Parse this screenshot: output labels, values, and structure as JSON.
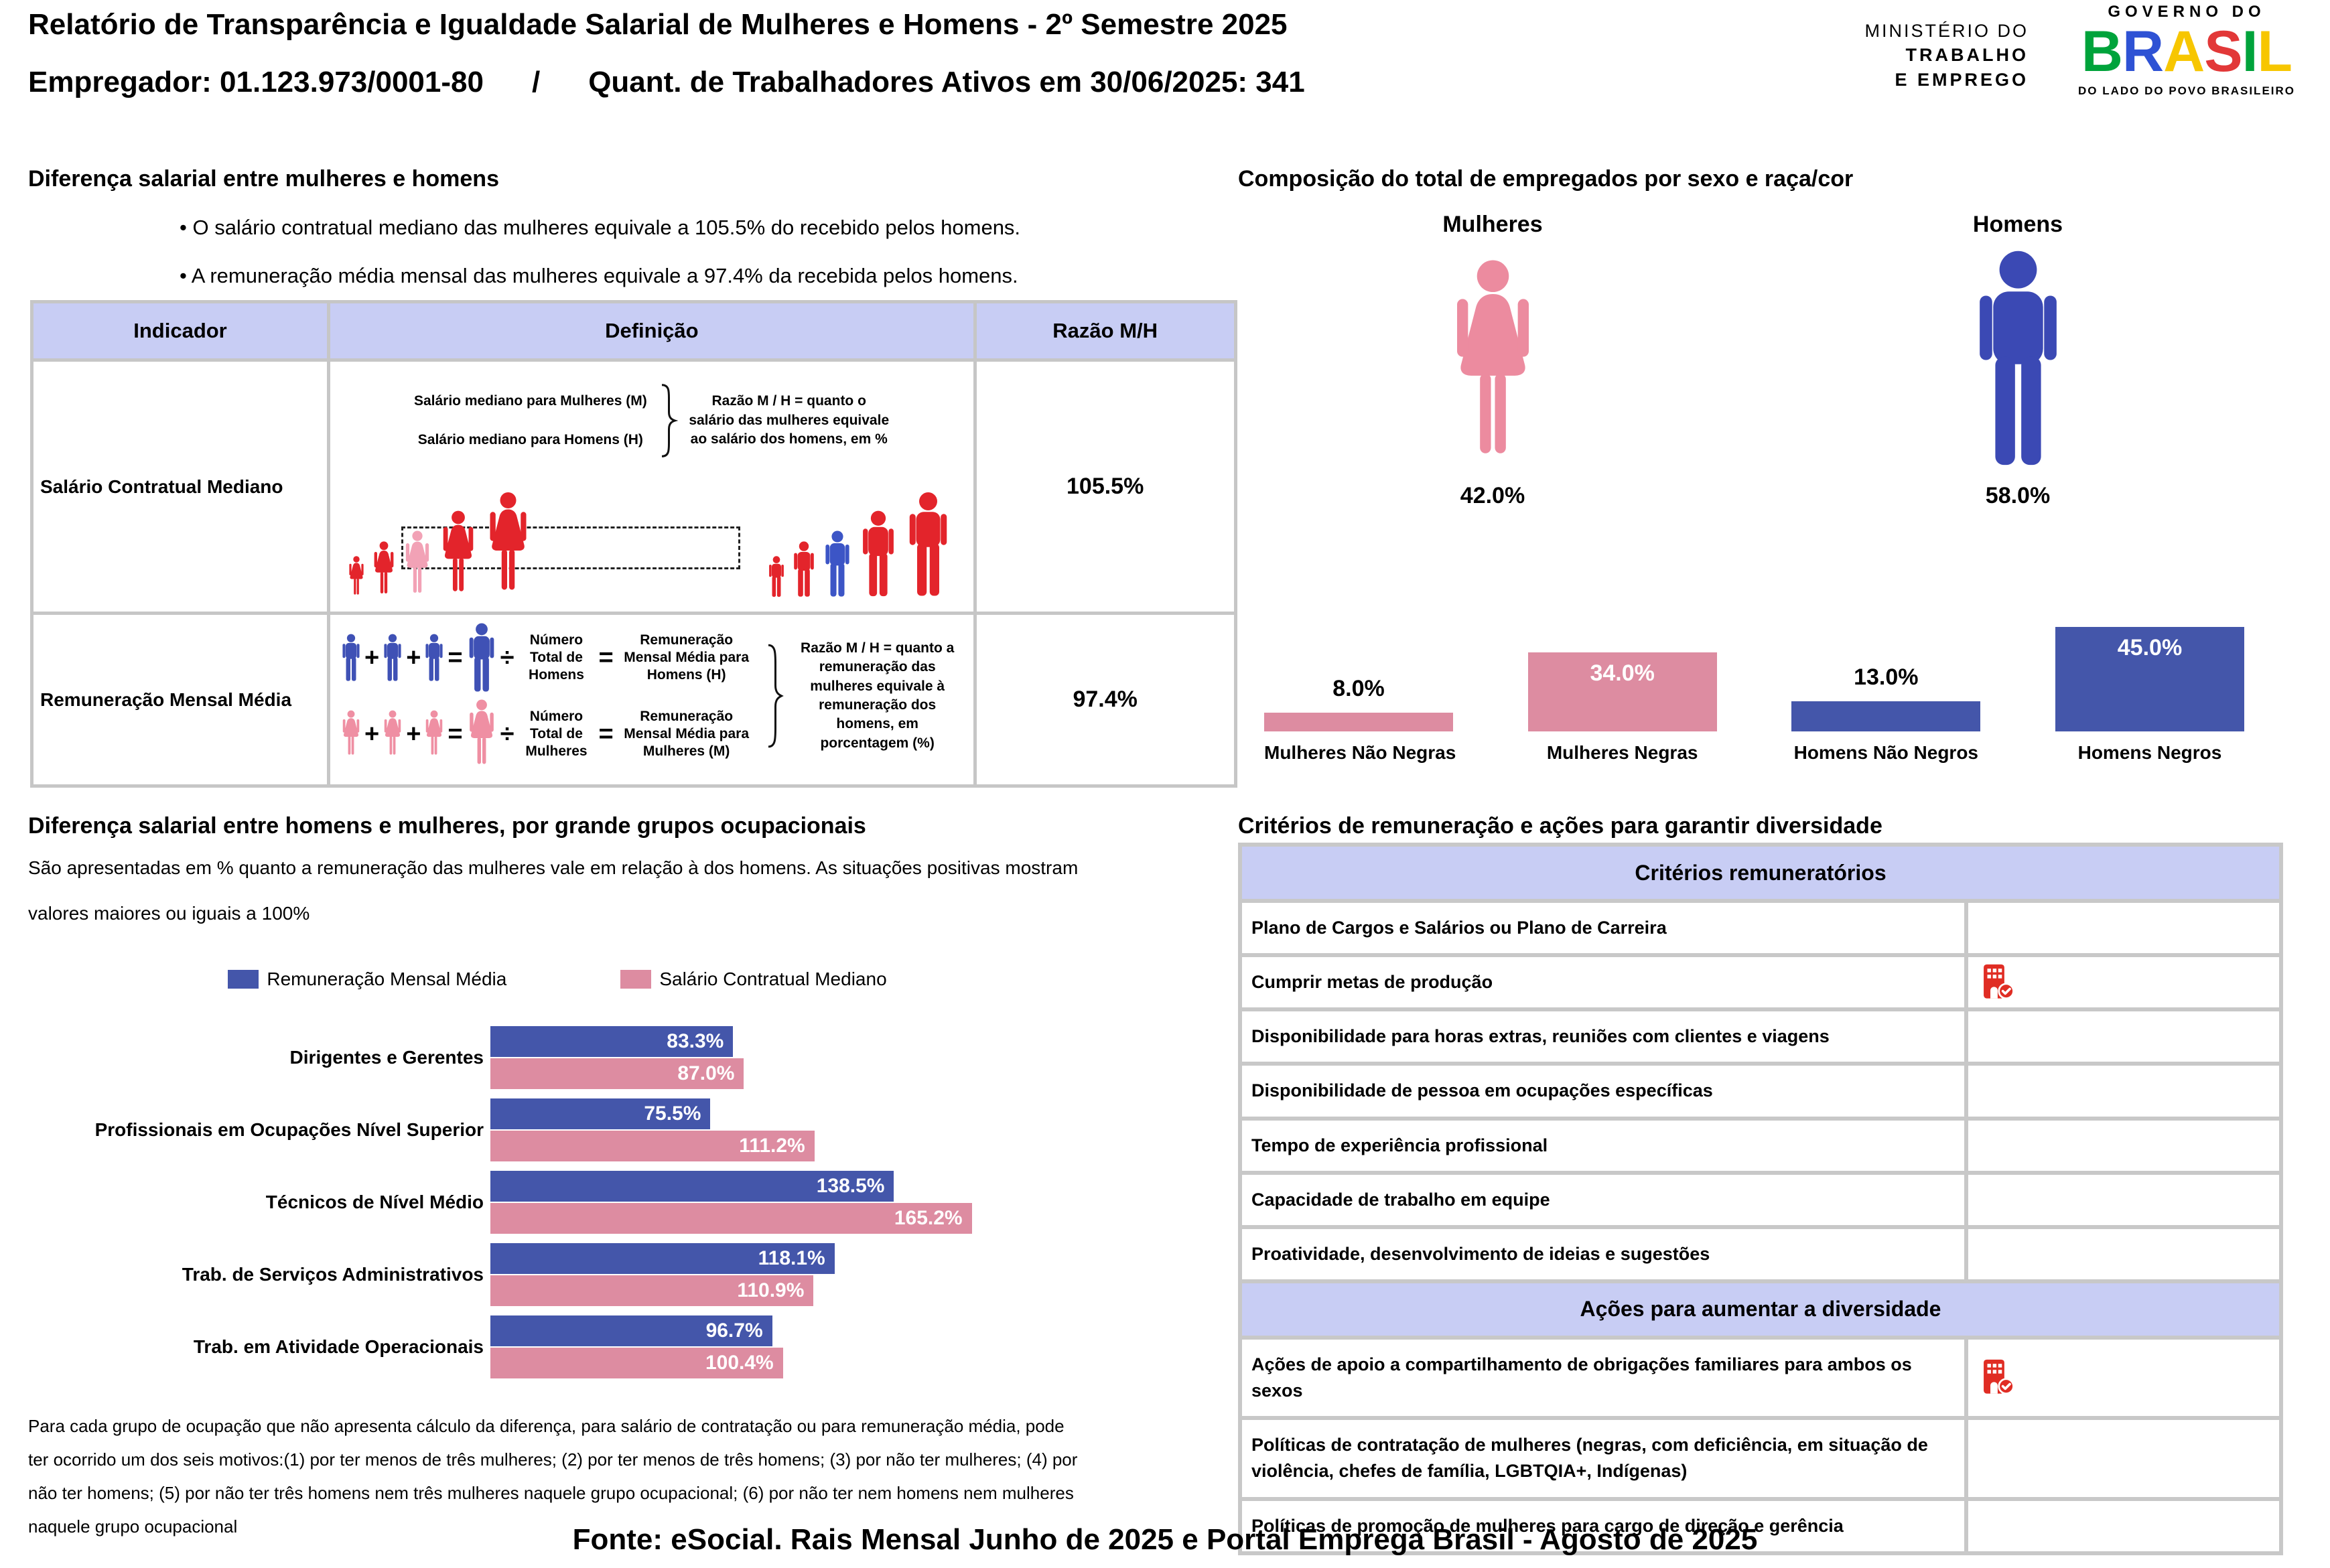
{
  "header": {
    "title": "Relatório de Transparência e Igualdade Salarial de Mulheres e Homens - 2º Semestre 2025",
    "employer": "Empregador: 01.123.973/0001-80",
    "separator": "/",
    "workers": "Quant. de Trabalhadores Ativos em 30/06/2025: 341",
    "ministry": {
      "line1": "MINISTÉRIO DO",
      "line2": "TRABALHO",
      "line3": "E EMPREGO"
    },
    "gov": {
      "top": "GOVERNO DO",
      "brasil": "BRASIL",
      "tagline": "DO LADO DO POVO BRASILEIRO"
    }
  },
  "salary_diff": {
    "title": "Diferença salarial entre mulheres e homens",
    "bullets": [
      "O salário contratual mediano das mulheres equivale a 105.5% do recebido pelos homens.",
      "A remuneração média mensal das mulheres equivale a 97.4% da recebida pelos homens."
    ],
    "table": {
      "headers": [
        "Indicador",
        "Definição",
        "Razão M/H"
      ],
      "row1": {
        "indicator": "Salário Contratual Mediano",
        "ratio": "105.5%",
        "def_label_women": "Salário mediano para Mulheres (M)",
        "def_label_men": "Salário mediano para Homens (H)",
        "def_note": "Razão M / H = quanto o salário das mulheres equivale ao salário dos homens, em %"
      },
      "row2": {
        "indicator": "Remuneração Mensal Média",
        "ratio": "97.4%",
        "plus": "+",
        "equals": "=",
        "divide": "÷",
        "men_count_label": "Número Total de Homens",
        "men_result_label": "Remuneração Mensal Média para Homens (H)",
        "women_count_label": "Número Total de Mulheres",
        "women_result_label": "Remuneração Mensal Média para Mulheres (M)",
        "def_note": "Razão M / H = quanto a remuneração das mulheres equivale à remuneração dos homens, em porcentagem (%)"
      }
    }
  },
  "composition": {
    "title": "Composição do total de empregados por sexo e raça/cor",
    "female_label": "Mulheres",
    "male_label": "Homens",
    "female_pct": "42.0%",
    "male_pct": "58.0%"
  },
  "occupational": {
    "title": "Diferença salarial entre homens e mulheres, por grande grupos ocupacionais",
    "subtitle": "São apresentadas em % quanto a remuneração das mulheres vale em relação à dos homens. As situações positivas mostram valores maiores ou iguais a 100%",
    "footnote": "Para cada grupo de ocupação que não apresenta cálculo da diferença, para salário de contratação ou para remuneração média, pode ter ocorrido um dos seis motivos:(1) por ter menos de três mulheres; (2) por ter menos de três homens; (3) por não ter mulheres; (4) por não ter homens; (5) por não ter três homens nem três mulheres naquele grupo ocupacional; (6) por não ter nem homens nem mulheres naquele grupo ocupacional"
  },
  "criteria": {
    "title": "Critérios de remuneração e ações para garantir diversidade",
    "sections": [
      {
        "header": "Critérios remuneratórios",
        "rows": [
          {
            "label": "Plano de Cargos e Salários ou Plano de Carreira",
            "checked": false
          },
          {
            "label": "Cumprir metas de produção",
            "checked": true
          },
          {
            "label": "Disponibilidade para horas extras, reuniões com clientes e viagens",
            "checked": false
          },
          {
            "label": "Disponibilidade de pessoa em ocupações específicas",
            "checked": false
          },
          {
            "label": "Tempo de experiência profissional",
            "checked": false
          },
          {
            "label": "Capacidade de trabalho em equipe",
            "checked": false
          },
          {
            "label": "Proatividade, desenvolvimento de ideias e sugestões",
            "checked": false
          }
        ]
      },
      {
        "header": "Ações para aumentar a diversidade",
        "rows": [
          {
            "label": "Ações de apoio a compartilhamento de obrigações familiares para ambos os sexos",
            "checked": true
          },
          {
            "label": "Políticas de contratação de mulheres (negras, com deficiência, em situação de violência, chefes de família, LGBTQIA+, Indígenas)",
            "checked": false
          },
          {
            "label": "Políticas de promoção de mulheres para cargo de direção e gerência",
            "checked": false
          }
        ]
      }
    ]
  },
  "footer": "Fonte: eSocial. Rais Mensal Junho de 2025 e Portal Emprega Brasil - Agosto de 2025",
  "colors": {
    "bar_pink": "#dd8ca1",
    "bar_blue": "#4456aa",
    "pictogram_pink": "#ec8b9f",
    "pictogram_blue": "#3b49b4",
    "figure_red": "#e3242b",
    "figure_pink_highlight": "#f2a2b6",
    "figure_blue_highlight": "#3c55c6",
    "formula_blue": "#3f51b5",
    "formula_pink": "#ef8fa3",
    "header_lavender": "#c8cdf4",
    "table_border": "#c6c6c6",
    "check_red": "#e02d24",
    "brasil_letters": [
      "#00a33b",
      "#2e52d4",
      "#f7c600",
      "#e23838",
      "#00a33b",
      "#f7c600"
    ]
  },
  "chart_data": [
    {
      "type": "bar",
      "title": "Composição do total de empregados por sexo e raça/cor",
      "categories": [
        "Mulheres Não Negras",
        "Mulheres Negras",
        "Homens Não Negros",
        "Homens Negros"
      ],
      "values": [
        8.0,
        34.0,
        13.0,
        45.0
      ],
      "labels": [
        "8.0%",
        "34.0%",
        "13.0%",
        "45.0%"
      ],
      "bar_colors": [
        "#dd8ca1",
        "#dd8ca1",
        "#4456aa",
        "#4456aa"
      ],
      "ylim": [
        0,
        50
      ],
      "grid": false,
      "axes_hidden": true
    },
    {
      "type": "bar",
      "orientation": "horizontal",
      "title": "Diferença salarial entre homens e mulheres, por grande grupos ocupacionais",
      "categories": [
        "Dirigentes e Gerentes",
        "Profissionais em Ocupações Nível Superior",
        "Técnicos de Nível Médio",
        "Trab. de Serviços Administrativos",
        "Trab. em Atividade Operacionais"
      ],
      "series": [
        {
          "name": "Remuneração Mensal Média",
          "color": "#4456aa",
          "values": [
            83.3,
            75.5,
            138.5,
            118.1,
            96.7
          ]
        },
        {
          "name": "Salário Contratual Mediano",
          "color": "#dd8ca1",
          "values": [
            87.0,
            111.2,
            165.2,
            110.9,
            100.4
          ]
        }
      ],
      "value_suffix": "%",
      "xlim": [
        0,
        180
      ],
      "legend_position": "top",
      "grid": false,
      "axes_hidden": true
    },
    {
      "type": "pictogram",
      "title": "Composição do total de empregados por sexo",
      "categories": [
        "Mulheres",
        "Homens"
      ],
      "values": [
        42.0,
        58.0
      ],
      "labels": [
        "42.0%",
        "58.0%"
      ]
    }
  ]
}
